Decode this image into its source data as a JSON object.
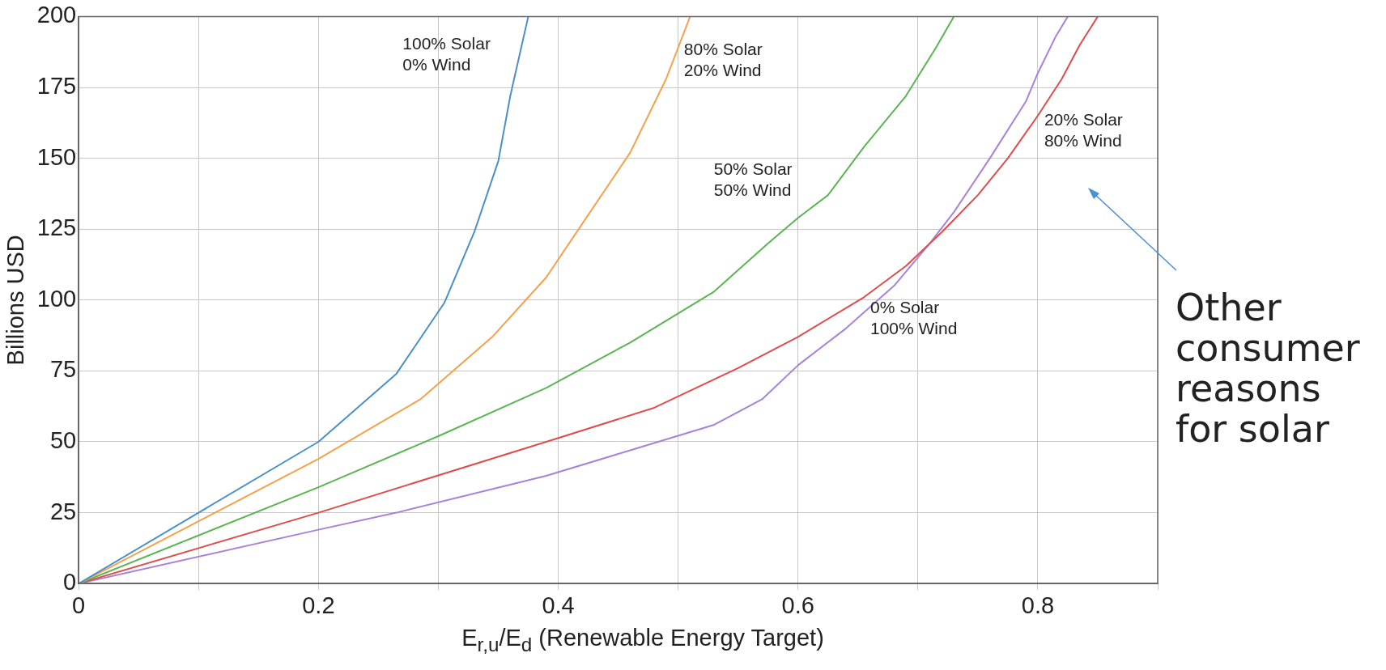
{
  "chart_data": {
    "type": "line",
    "xlabel": "E$_{r,u}$/E$_{d}$ (Renewable Energy Target)",
    "ylabel": "Billions USD",
    "xlim": [
      0,
      0.9
    ],
    "xticks": [
      0,
      {
        "value": 0.1,
        "label": null
      },
      0.2,
      {
        "value": 0.3,
        "label": null
      },
      0.4,
      {
        "value": 0.5,
        "label": null
      },
      0.6,
      {
        "value": 0.7,
        "label": null
      },
      0.8,
      {
        "value": 0.9,
        "label": null
      }
    ],
    "ylim": [
      0,
      200
    ],
    "yticks": [
      0,
      25,
      50,
      75,
      100,
      125,
      150,
      175,
      200
    ],
    "grid": true,
    "legend": false,
    "marker": "none",
    "line_style": "solid",
    "series": [
      {
        "name": "100% Solar\n0% Wind",
        "color": "#4a90c8",
        "x": [
          0,
          0.1,
          0.2,
          0.265,
          0.305,
          0.33,
          0.35,
          0.36,
          0.375
        ],
        "values": [
          0,
          25,
          50,
          74,
          99,
          124,
          149,
          172,
          200
        ]
      },
      {
        "name": "80% Solar\n20% Wind",
        "color": "#f5a04a",
        "x": [
          0,
          0.2,
          0.285,
          0.345,
          0.39,
          0.425,
          0.46,
          0.49,
          0.51
        ],
        "values": [
          0,
          44,
          65,
          87,
          108,
          130,
          152,
          178,
          200
        ]
      },
      {
        "name": "50% Solar\n50% Wind",
        "color": "#5ab552",
        "x": [
          0,
          0.2,
          0.3,
          0.39,
          0.46,
          0.53,
          0.575,
          0.6,
          0.625,
          0.655,
          0.69,
          0.715,
          0.73
        ],
        "values": [
          0,
          34,
          52,
          69,
          85,
          103,
          120,
          129,
          137,
          154,
          172,
          189,
          200
        ]
      },
      {
        "name": "20% Solar\n80% Wind",
        "color": "#de4c4c",
        "x": [
          0,
          0.2,
          0.39,
          0.48,
          0.55,
          0.6,
          0.655,
          0.69,
          0.72,
          0.75,
          0.775,
          0.8,
          0.82,
          0.835,
          0.85
        ],
        "values": [
          0,
          25,
          50,
          62,
          76,
          87,
          101,
          112,
          124,
          137,
          150,
          165,
          178,
          190,
          200
        ]
      },
      {
        "name": "0% Solar\n100% Wind",
        "color": "#a882d8",
        "x": [
          0,
          0.2,
          0.265,
          0.39,
          0.46,
          0.53,
          0.57,
          0.6,
          0.64,
          0.68,
          0.71,
          0.73,
          0.76,
          0.79,
          0.8,
          0.815,
          0.825
        ],
        "values": [
          0,
          19,
          25,
          38,
          47,
          56,
          65,
          77,
          90,
          105,
          120,
          131,
          150,
          170,
          180,
          193,
          200
        ]
      }
    ],
    "annotations": [
      "Other consumer reasons for solar"
    ]
  }
}
